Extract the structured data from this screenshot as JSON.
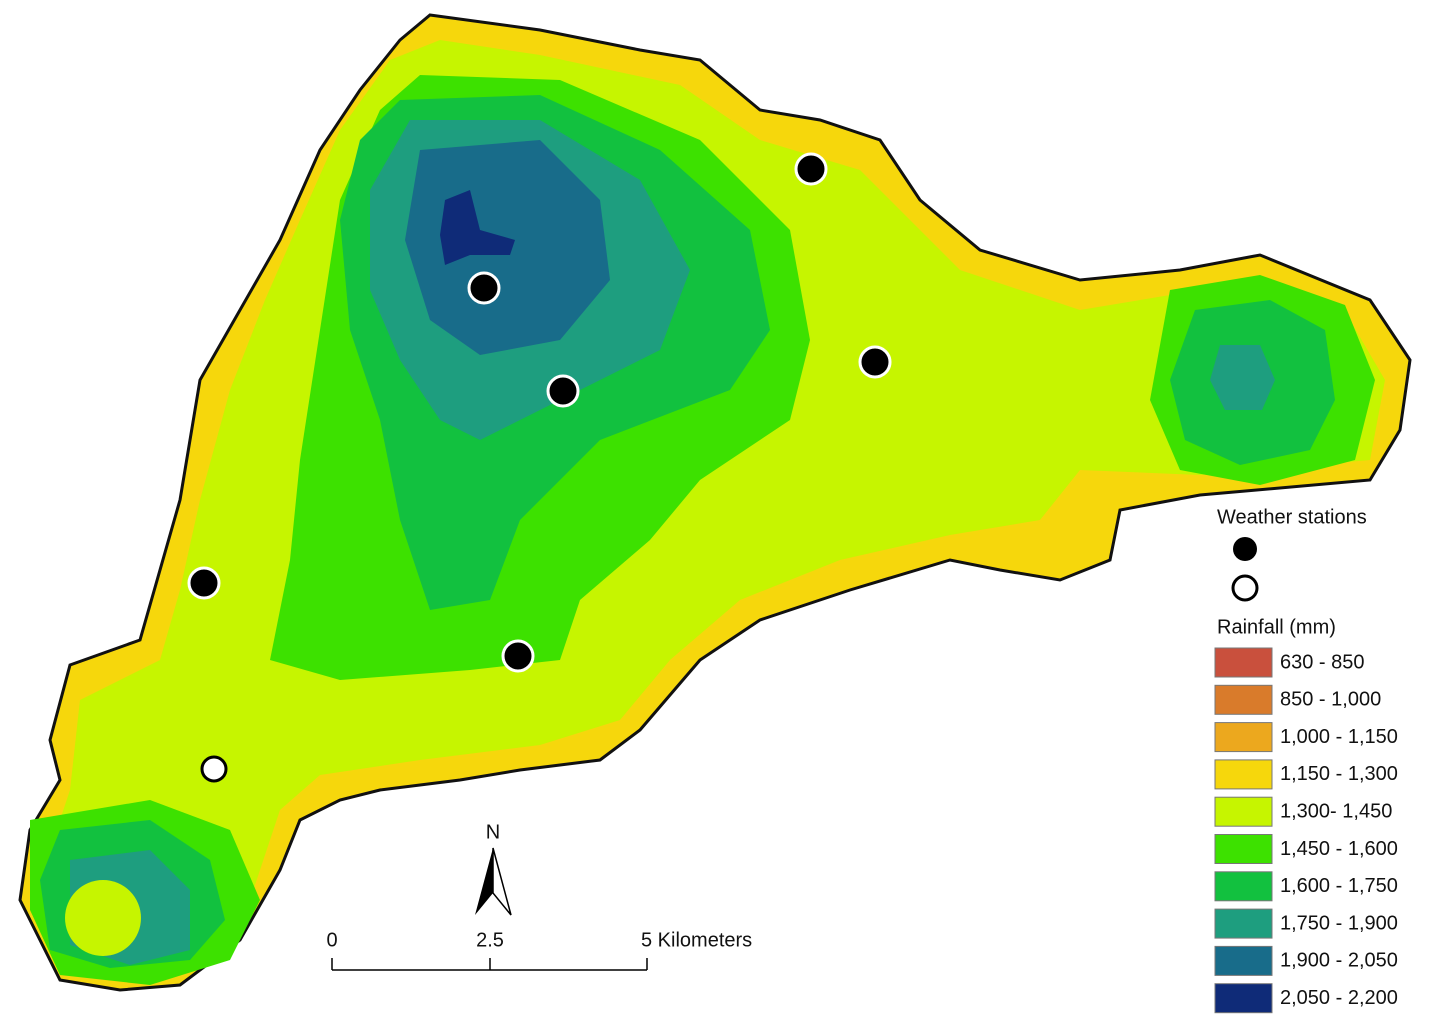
{
  "north_arrow": "N",
  "scale_bar": {
    "labels": [
      "0",
      "2.5",
      "5 Kilometers"
    ]
  },
  "legend": {
    "stations_title": "Weather stations",
    "rainfall_title": "Rainfall (mm)",
    "classes": [
      {
        "label": "630 - 850",
        "color": "#c9503d"
      },
      {
        "label": "850 - 1,000",
        "color": "#d97b2b"
      },
      {
        "label": "1,000 - 1,150",
        "color": "#eca81e"
      },
      {
        "label": "1,150 - 1,300",
        "color": "#f6d70c"
      },
      {
        "label": "1,300- 1,450",
        "color": "#c6f500"
      },
      {
        "label": "1,450 - 1,600",
        "color": "#3de100"
      },
      {
        "label": "1,600 - 1,750",
        "color": "#12c13f"
      },
      {
        "label": "1,750 - 1,900",
        "color": "#1e9e7f"
      },
      {
        "label": "1,900 - 2,050",
        "color": "#186c8a"
      },
      {
        "label": "2,050 - 2,200",
        "color": "#0f2b78"
      }
    ]
  }
}
